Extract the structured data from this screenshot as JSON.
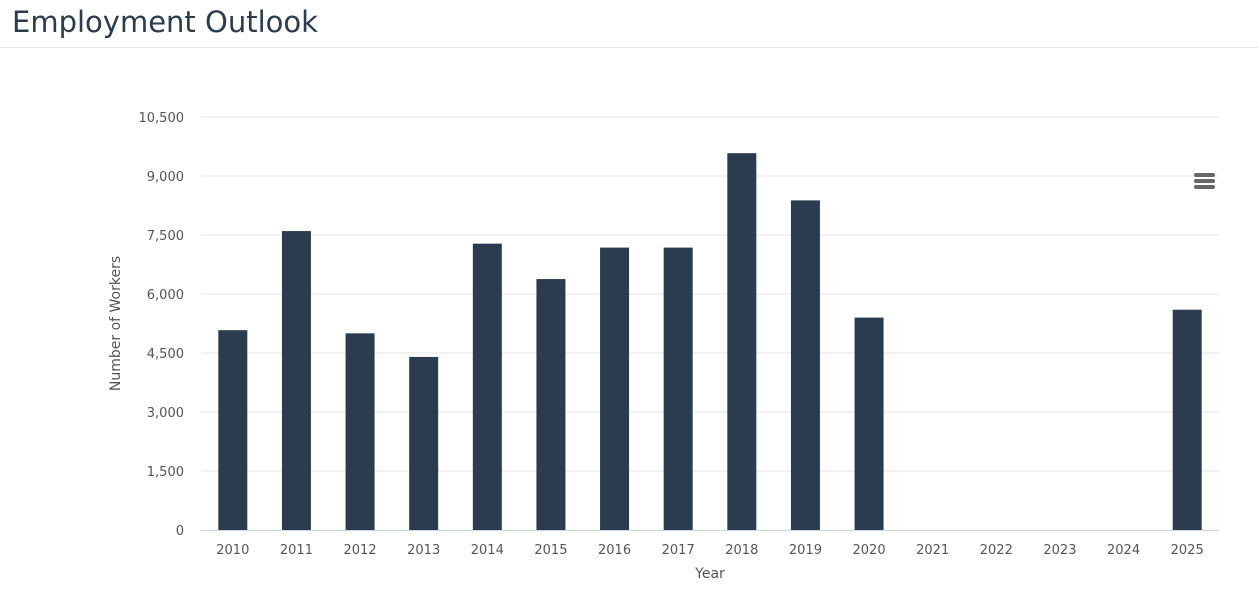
{
  "header": {
    "title": "Employment Outlook"
  },
  "menu": {
    "icon": "hamburger-menu-icon"
  },
  "chart_data": {
    "type": "bar",
    "categories": [
      "2010",
      "2011",
      "2012",
      "2013",
      "2014",
      "2015",
      "2016",
      "2017",
      "2018",
      "2019",
      "2020",
      "2021",
      "2022",
      "2023",
      "2024",
      "2025"
    ],
    "values": [
      5080,
      7600,
      5000,
      4400,
      7280,
      6380,
      7180,
      7180,
      9580,
      8380,
      5400,
      null,
      null,
      null,
      null,
      5600
    ],
    "xlabel": "Year",
    "ylabel": "Number of Workers",
    "ylim": [
      0,
      10500
    ],
    "yticks": [
      0,
      1500,
      3000,
      4500,
      6000,
      7500,
      9000,
      10500
    ],
    "ytick_labels": [
      "0",
      "1,500",
      "3,000",
      "4,500",
      "6,000",
      "7,500",
      "9,000",
      "10,500"
    ],
    "grid": true,
    "legend": "none",
    "bar_color": "#2b3c4e",
    "grid_color": "#e6e6e6"
  }
}
